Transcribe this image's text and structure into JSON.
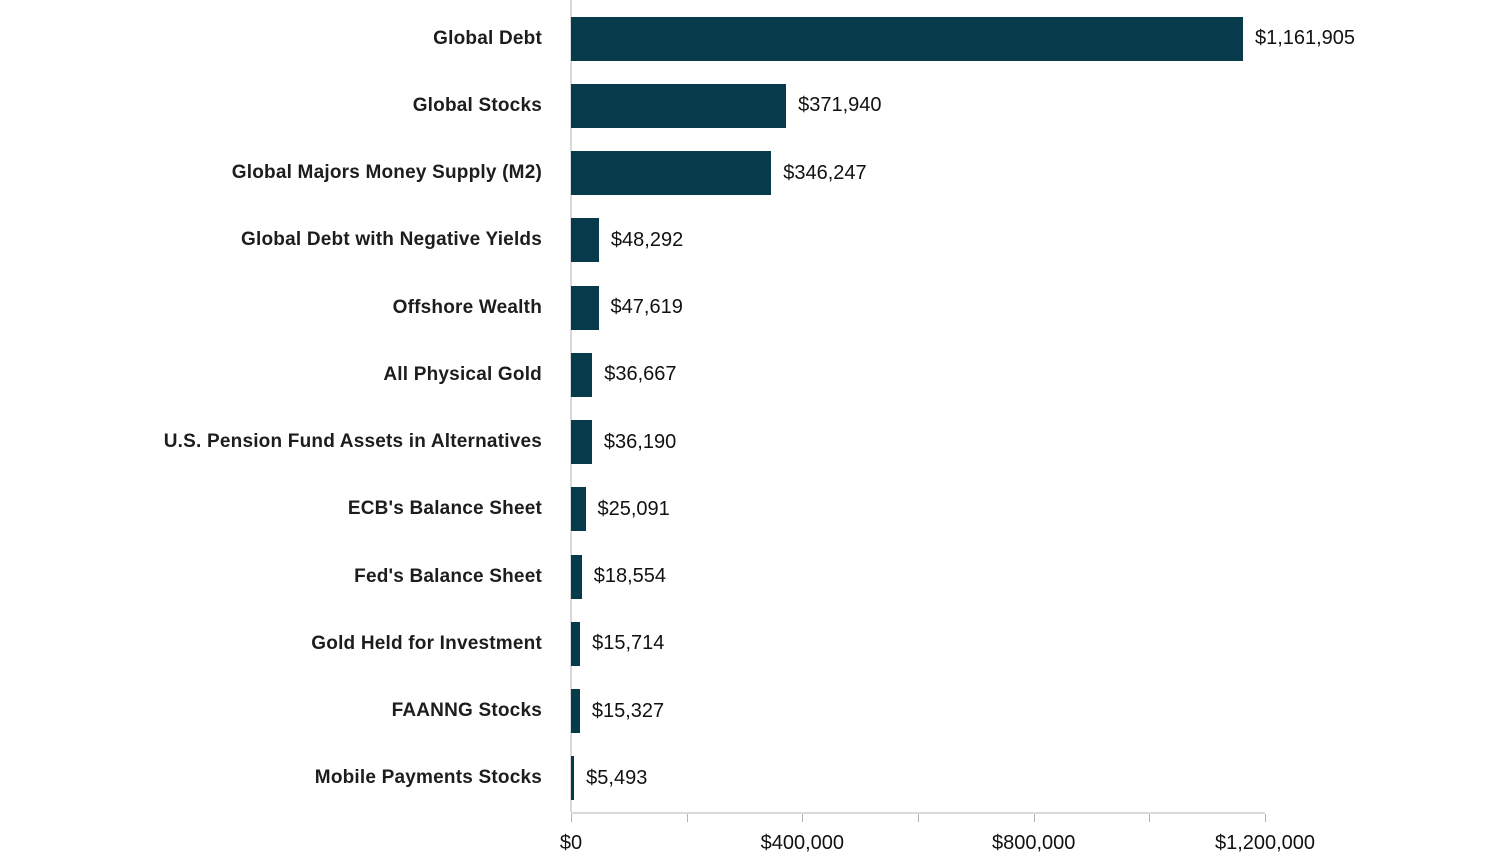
{
  "chart_data": {
    "type": "bar",
    "orientation": "horizontal",
    "title": "",
    "xlabel": "",
    "ylabel": "",
    "categories": [
      "Global Debt",
      "Global Stocks",
      "Global Majors Money Supply (M2)",
      "Global Debt with Negative Yields",
      "Offshore Wealth",
      "All Physical Gold",
      "U.S. Pension Fund Assets in Alternatives",
      "ECB's Balance Sheet",
      "Fed's Balance Sheet",
      "Gold Held for Investment",
      "FAANNG Stocks",
      "Mobile Payments Stocks"
    ],
    "values": [
      1161905,
      371940,
      346247,
      48292,
      47619,
      36667,
      36190,
      25091,
      18554,
      15714,
      15327,
      5493
    ],
    "value_labels": [
      "$1,161,905",
      "$371,940",
      "$346,247",
      "$48,292",
      "$47,619",
      "$36,667",
      "$36,190",
      "$25,091",
      "$18,554",
      "$15,714",
      "$15,327",
      "$5,493"
    ],
    "xlim": [
      0,
      1200000
    ],
    "x_tick_interval": 200000,
    "x_major_ticks": [
      0,
      400000,
      800000,
      1200000
    ],
    "x_major_tick_labels": [
      "$0",
      "$400,000",
      "$800,000",
      "$1,200,000"
    ],
    "grid": false,
    "legend_position": "none",
    "bar_color": "#073a4a",
    "axis_line_color": "#d9d9d9",
    "label_color": "#1d1d1d",
    "value_label_color": "#111111"
  }
}
